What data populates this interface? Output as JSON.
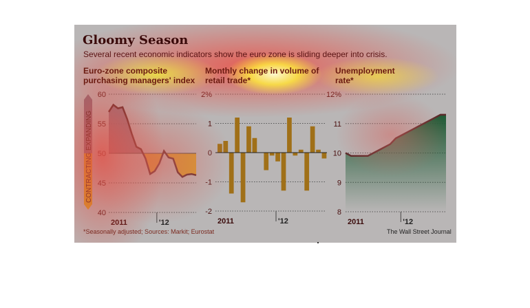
{
  "header": {
    "title": "Gloomy Season",
    "subtitle": "Several recent economic indicators show the euro zone is sliding deeper into crisis."
  },
  "footer": {
    "note": "*Seasonally adjusted; Sources: Markit; Eurostat",
    "source": "The Wall Street Journal"
  },
  "colors": {
    "line": "#5a2a2a",
    "expanding": "#8a6a78",
    "contracting": "#d69a20",
    "bars": "#a07018",
    "unemployment": "#1f5a35"
  },
  "chart_data": [
    {
      "type": "area",
      "title_line1": "Euro-zone composite",
      "title_line2": "purchasing managers' index",
      "ylim": [
        40,
        60
      ],
      "yticks": [
        "60",
        "55",
        "50",
        "45",
        "40"
      ],
      "xticks": [
        "2011",
        "'12"
      ],
      "baseline": 50,
      "band_labels": {
        "upper": "EXPANDING",
        "lower": "CONTRACTING"
      },
      "values": [
        57.0,
        58.2,
        57.6,
        57.8,
        55.8,
        53.3,
        51.1,
        50.7,
        49.1,
        46.5,
        47.0,
        48.3,
        50.4,
        49.3,
        49.1,
        46.8,
        46.0,
        46.4,
        46.5,
        46.3
      ]
    },
    {
      "type": "bar",
      "title_line1": "Monthly change in volume of",
      "title_line2": "retail trade*",
      "ylim": [
        -2,
        2
      ],
      "yticks": [
        "2%",
        "1",
        "0",
        "-1",
        "-2"
      ],
      "xticks": [
        "2011",
        "'12"
      ],
      "values": [
        0.3,
        0.4,
        -1.4,
        1.2,
        -1.7,
        0.9,
        0.5,
        0,
        -0.6,
        -0.1,
        -0.3,
        -1.3,
        1.2,
        -0.1,
        0.1,
        -1.3,
        0.9,
        0.1,
        -0.2
      ]
    },
    {
      "type": "area",
      "title_line1": "Unemployment",
      "title_line2": "rate*",
      "ylim": [
        8,
        12
      ],
      "yticks": [
        "12%",
        "11",
        "10",
        "9",
        "8"
      ],
      "xticks": [
        "2011",
        "'12"
      ],
      "values": [
        10.0,
        9.9,
        9.9,
        9.9,
        9.9,
        10.0,
        10.1,
        10.2,
        10.3,
        10.5,
        10.6,
        10.7,
        10.8,
        10.9,
        11.0,
        11.1,
        11.2,
        11.3,
        11.3
      ]
    }
  ]
}
